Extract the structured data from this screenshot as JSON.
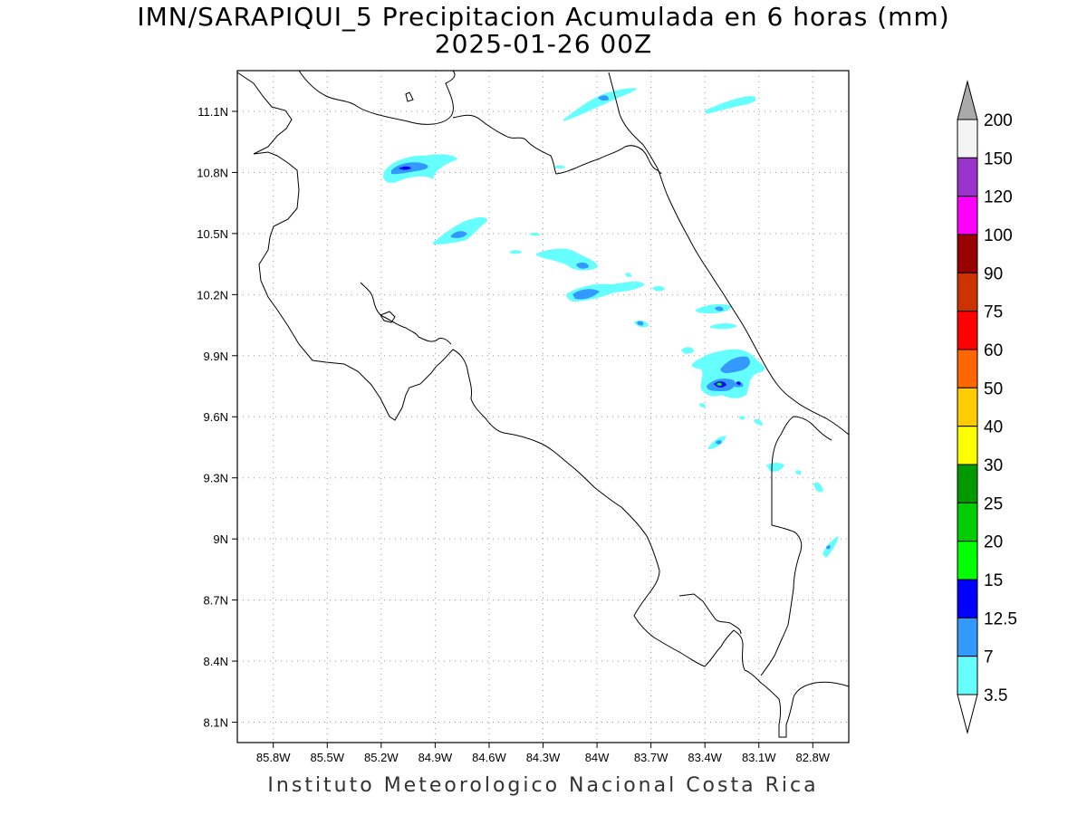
{
  "title": {
    "line1": "IMN/SARAPIQUI_5 Precipitacion Acumulada en 6 horas (mm)",
    "line2": "2025-01-26 00Z"
  },
  "credit": "Instituto Meteorologico Nacional Costa Rica",
  "map": {
    "lon_range": [
      -86.0,
      -82.6
    ],
    "lat_range": [
      8.0,
      11.3
    ],
    "lon_ticks": [
      "85.8W",
      "85.5W",
      "85.2W",
      "84.9W",
      "84.6W",
      "84.3W",
      "84W",
      "83.7W",
      "83.4W",
      "83.1W",
      "82.8W"
    ],
    "lat_ticks": [
      "11.1N",
      "10.8N",
      "10.5N",
      "10.2N",
      "9.9N",
      "9.6N",
      "9.3N",
      "9N",
      "8.7N",
      "8.4N",
      "8.1N"
    ],
    "grid": true
  },
  "legend": {
    "levels": [
      "200",
      "150",
      "120",
      "100",
      "90",
      "75",
      "60",
      "50",
      "40",
      "30",
      "25",
      "20",
      "15",
      "12.5",
      "7",
      "3.5"
    ],
    "colors": [
      "#f4f4f4",
      "#9933cc",
      "#ff00ff",
      "#990000",
      "#cc3300",
      "#ff0000",
      "#ff6600",
      "#ffcc00",
      "#ffff00",
      "#009900",
      "#00cc00",
      "#00ff00",
      "#0000ff",
      "#3399ff",
      "#66ffff"
    ],
    "over_color": "#aaaaaa",
    "under_color": "#ffffff"
  }
}
